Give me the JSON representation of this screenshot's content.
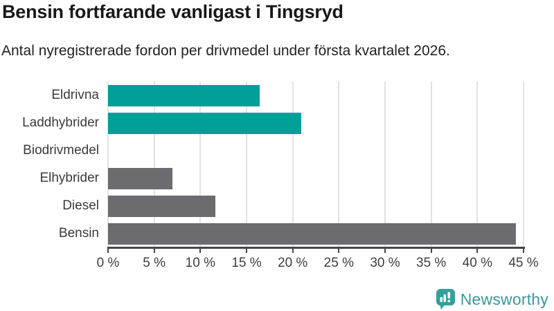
{
  "header": {
    "title": "Bensin fortfarande vanligast i Tingsryd",
    "subtitle": "Antal nyregistrerade fordon per drivmedel under första kvartalet 2026."
  },
  "chart_data": {
    "type": "bar",
    "orientation": "horizontal",
    "title": "Bensin fortfarande vanligast i Tingsryd",
    "subtitle": "Antal nyregistrerade fordon per drivmedel under första kvartalet 2026.",
    "categories": [
      "Eldrivna",
      "Laddhybrider",
      "Biodrivmedel",
      "Elhybrider",
      "Diesel",
      "Bensin"
    ],
    "values": [
      16.4,
      20.9,
      0,
      7.0,
      11.6,
      44.2
    ],
    "unit": "%",
    "bar_colors": [
      "#00a099",
      "#00a099",
      "#00a099",
      "#6b6b70",
      "#6b6b70",
      "#6b6b70"
    ],
    "xlabel": "",
    "ylabel": "",
    "xlim": [
      0,
      45
    ],
    "x_ticks": [
      0,
      5,
      10,
      15,
      20,
      25,
      30,
      35,
      40,
      45
    ],
    "x_tick_labels": [
      "0 %",
      "5 %",
      "10 %",
      "15 %",
      "20 %",
      "25 %",
      "30 %",
      "35 %",
      "40 %",
      "45 %"
    ],
    "grid": true,
    "legend_position": "none"
  },
  "branding": {
    "logo_label": "Newsworthy",
    "logo_icon": "bar-chart-speech-bubble-icon",
    "logo_color": "#38999a",
    "icon_color": "#34a09b"
  },
  "colors": {
    "accent_teal": "#00a099",
    "neutral_gray": "#6b6b70",
    "gridline": "#e2e2e2",
    "axis": "#46464a",
    "text_dark": "#181814",
    "label_gray": "#3a3a3a"
  }
}
